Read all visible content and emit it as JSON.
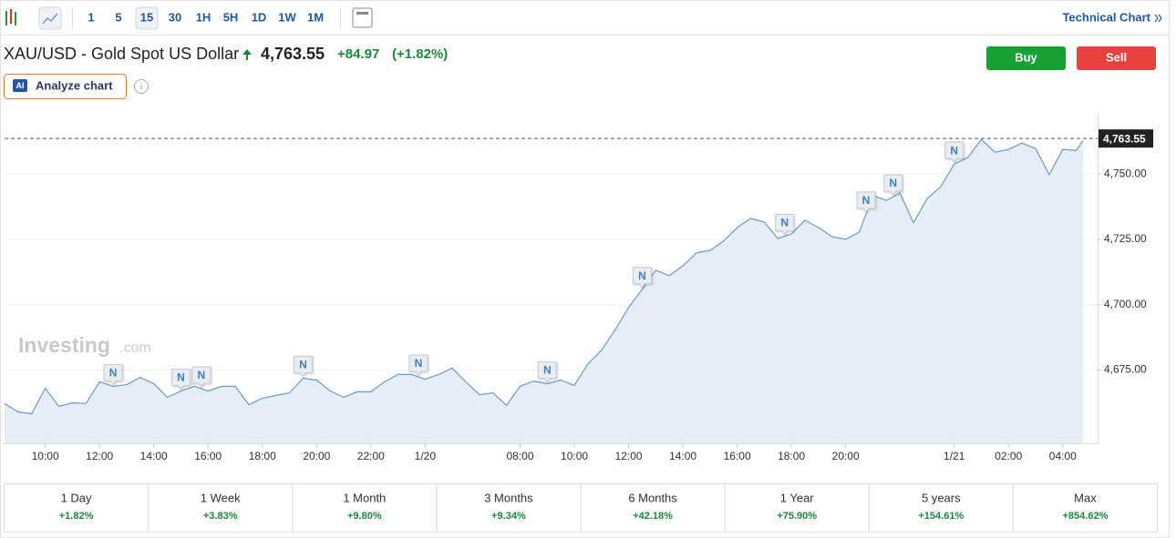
{
  "toolbar": {
    "intervals": [
      "1",
      "5",
      "15",
      "30",
      "1H",
      "5H",
      "1D",
      "1W",
      "1M"
    ],
    "link": "Technical Chart"
  },
  "header": {
    "instrument": "XAU/USD - Gold Spot US Dollar",
    "price": "4,763.55",
    "change": "+84.97",
    "change_pct": "(+1.82%)",
    "buy": "Buy",
    "sell": "Sell",
    "ai_badge": "AI",
    "analyze": "Analyze chart"
  },
  "watermark": {
    "brand": "Investing",
    "domain": ".com"
  },
  "chart_data": {
    "type": "area",
    "line_color": "#6a9bd0",
    "fill_color": "#e6edf5",
    "grid": true,
    "xlim": [
      -6,
      155
    ],
    "ylim": [
      4647,
      4773
    ],
    "xticks": [
      {
        "value": 0,
        "label": "10:00"
      },
      {
        "value": 8,
        "label": "12:00"
      },
      {
        "value": 16,
        "label": "14:00"
      },
      {
        "value": 24,
        "label": "16:00"
      },
      {
        "value": 32,
        "label": "18:00"
      },
      {
        "value": 40,
        "label": "20:00"
      },
      {
        "value": 48,
        "label": "22:00"
      },
      {
        "value": 56,
        "label": "1/20"
      },
      {
        "value": 70,
        "label": "08:00"
      },
      {
        "value": 78,
        "label": "10:00"
      },
      {
        "value": 86,
        "label": "12:00"
      },
      {
        "value": 94,
        "label": "14:00"
      },
      {
        "value": 102,
        "label": "16:00"
      },
      {
        "value": 110,
        "label": "18:00"
      },
      {
        "value": 118,
        "label": "20:00"
      },
      {
        "value": 134,
        "label": "1/21"
      },
      {
        "value": 142,
        "label": "02:00"
      },
      {
        "value": 150,
        "label": "04:00"
      }
    ],
    "yticks": [
      {
        "value": 4675,
        "label": "4,675.00"
      },
      {
        "value": 4700,
        "label": "4,700.00"
      },
      {
        "value": 4725,
        "label": "4,725.00"
      },
      {
        "value": 4750,
        "label": "4,750.00"
      }
    ],
    "last_price": {
      "value": 4763.55,
      "label": "4,763.55"
    },
    "x": [
      -6,
      -4,
      -2,
      0,
      2,
      4,
      6,
      8,
      10,
      12,
      14,
      16,
      18,
      20,
      22,
      24,
      26,
      28,
      30,
      32,
      34,
      36,
      38,
      40,
      42,
      44,
      46,
      48,
      50,
      52,
      54,
      56,
      58,
      60,
      62,
      64,
      66,
      68,
      70,
      72,
      74,
      76,
      78,
      80,
      82,
      84,
      86,
      88,
      90,
      92,
      94,
      96,
      98,
      100,
      102,
      104,
      106,
      108,
      110,
      112,
      114,
      116,
      118,
      120,
      122,
      124,
      126,
      128,
      130,
      132,
      134,
      136,
      138,
      140,
      142,
      144,
      146,
      148,
      150,
      152,
      153
    ],
    "values": [
      4662.2,
      4659.0,
      4658.3,
      4668.1,
      4661.1,
      4662.5,
      4662.2,
      4670.5,
      4668.8,
      4669.4,
      4672.2,
      4669.8,
      4664.6,
      4667.0,
      4668.8,
      4667.0,
      4668.8,
      4668.8,
      4661.8,
      4664.2,
      4665.3,
      4666.3,
      4671.9,
      4671.2,
      4667.0,
      4664.6,
      4666.7,
      4666.7,
      4670.5,
      4673.3,
      4673.3,
      4671.5,
      4673.3,
      4675.7,
      4670.5,
      4665.6,
      4666.3,
      4661.5,
      4668.8,
      4670.8,
      4669.8,
      4671.2,
      4669.1,
      4677.4,
      4682.6,
      4690.3,
      4699.0,
      4705.9,
      4713.2,
      4711.1,
      4714.9,
      4719.8,
      4720.8,
      4724.3,
      4729.5,
      4733.0,
      4731.6,
      4725.3,
      4727.1,
      4732.3,
      4729.5,
      4726.0,
      4725.0,
      4727.8,
      4741.7,
      4739.9,
      4742.7,
      4731.3,
      4740.6,
      4745.1,
      4753.8,
      4756.3,
      4763.2,
      4758.3,
      4759.4,
      4761.8,
      4759.7,
      4749.7,
      4759.4,
      4759.0,
      4762.8
    ],
    "annotations": [
      {
        "x": 10,
        "label": "N"
      },
      {
        "x": 20,
        "label": "N"
      },
      {
        "x": 23,
        "label": "N"
      },
      {
        "x": 38,
        "label": "N"
      },
      {
        "x": 55,
        "label": "N"
      },
      {
        "x": 74,
        "label": "N"
      },
      {
        "x": 88,
        "label": "N"
      },
      {
        "x": 109,
        "label": "N"
      },
      {
        "x": 121,
        "label": "N"
      },
      {
        "x": 125,
        "label": "N"
      },
      {
        "x": 134,
        "label": "N"
      }
    ]
  },
  "performance": [
    {
      "period": "1 Day",
      "change": "+1.82%"
    },
    {
      "period": "1 Week",
      "change": "+3.83%"
    },
    {
      "period": "1 Month",
      "change": "+9.80%"
    },
    {
      "period": "3 Months",
      "change": "+9.34%"
    },
    {
      "period": "6 Months",
      "change": "+42.18%"
    },
    {
      "period": "1 Year",
      "change": "+75.90%"
    },
    {
      "period": "5 years",
      "change": "+154.61%"
    },
    {
      "period": "Max",
      "change": "+854.62%"
    }
  ]
}
